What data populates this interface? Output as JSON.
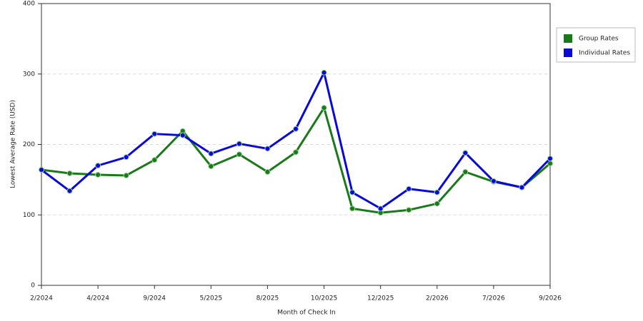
{
  "chart_data": {
    "type": "line",
    "x_label": "Month of Check In",
    "y_label": "Lowest Average Rate (USD)",
    "categories": [
      "2/2024",
      null,
      "4/2024",
      null,
      "9/2024",
      null,
      "5/2025",
      null,
      "8/2025",
      null,
      "10/2025",
      null,
      "12/2025",
      null,
      "2/2026",
      null,
      "7/2026",
      null,
      "9/2026"
    ],
    "series": [
      {
        "name": "Group Rates",
        "color": "#1a7a1a",
        "values": [
          164,
          159,
          157,
          156,
          178,
          219,
          169,
          186,
          161,
          189,
          252,
          109,
          103,
          107,
          116,
          161,
          147,
          139,
          173
        ]
      },
      {
        "name": "Individual Rates",
        "color": "#0a0ad8",
        "values": [
          164,
          134,
          170,
          182,
          215,
          213,
          187,
          201,
          194,
          222,
          302,
          132,
          109,
          137,
          132,
          188,
          148,
          139,
          180
        ]
      }
    ],
    "ylim": [
      0,
      400
    ],
    "yticks": [
      0,
      100,
      200,
      300,
      400
    ],
    "grid": true,
    "legend": "right"
  }
}
